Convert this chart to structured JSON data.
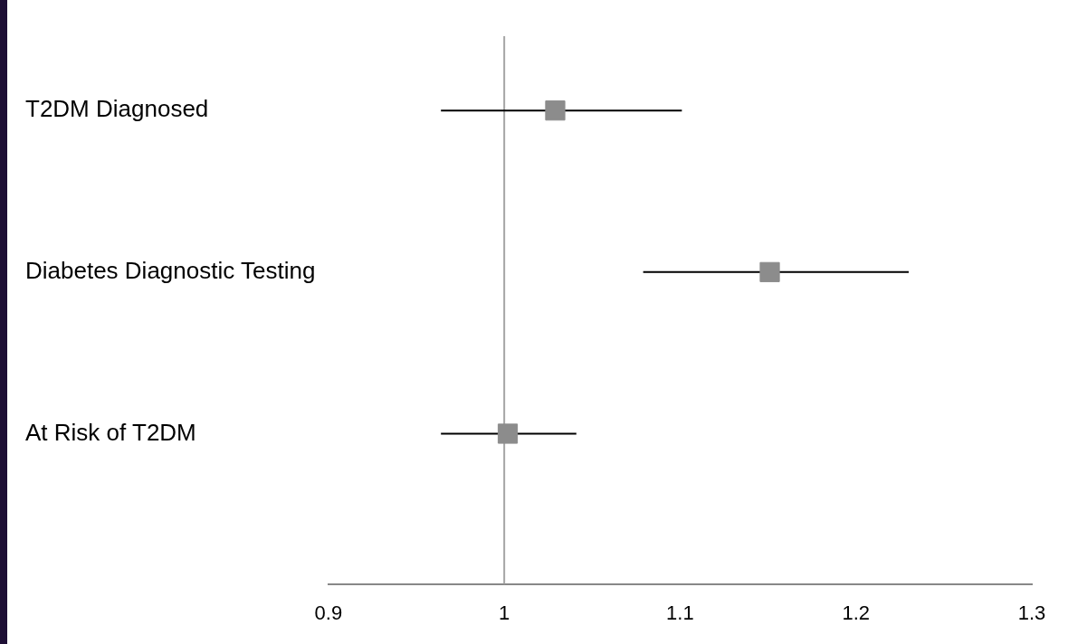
{
  "chart_data": {
    "type": "scatter",
    "orientation": "horizontal",
    "categories": [
      "T2DM Diagnosed",
      "Diabetes Diagnostic Testing",
      "At Risk of T2DM"
    ],
    "values": [
      1.029,
      1.151,
      1.002
    ],
    "errors": [
      [
        0.964,
        1.101
      ],
      [
        1.079,
        1.23
      ],
      [
        0.964,
        1.041
      ]
    ],
    "color": "#8c8c8c",
    "marker": "square",
    "xlim": [
      0.9,
      1.3
    ],
    "xticks": [
      0.9,
      1,
      1.1,
      1.2,
      1.3
    ],
    "ref_lines": [
      {
        "axis": "x",
        "value": 1,
        "color": "#a6a6a6"
      }
    ],
    "grid": false,
    "legend": false
  }
}
